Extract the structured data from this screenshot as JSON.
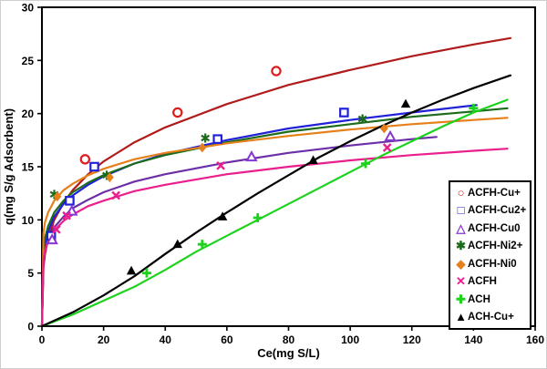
{
  "figure": {
    "background": "#ffffff",
    "border_color": "#cfcfcf"
  },
  "chart_data": {
    "type": "scatter",
    "title": "",
    "xlabel": "Ce(mg S/L)",
    "ylabel": "q(mg S/g Adsorbent)",
    "xlim": [
      0,
      160
    ],
    "ylim": [
      0,
      30
    ],
    "xticks": [
      0,
      20,
      40,
      60,
      80,
      100,
      120,
      140,
      160
    ],
    "yticks": [
      0,
      5,
      10,
      15,
      20,
      25,
      30
    ],
    "grid": false,
    "legend_position": "inside bottom-right",
    "axis_color": "#000000",
    "series": [
      {
        "name": "ACFH-Cu+",
        "marker": "open-circle",
        "marker_color": "#dd1c1c",
        "line_color": "#b01c1c",
        "points": [
          [
            14,
            15.7
          ],
          [
            44,
            20.1
          ],
          [
            76,
            24.0
          ]
        ],
        "curve": [
          [
            0,
            0
          ],
          [
            0.5,
            5.6
          ],
          [
            1,
            6.8
          ],
          [
            2,
            8.2
          ],
          [
            4,
            10.0
          ],
          [
            7,
            11.6
          ],
          [
            10,
            12.8
          ],
          [
            15,
            14.3
          ],
          [
            20,
            15.5
          ],
          [
            30,
            17.3
          ],
          [
            40,
            18.7
          ],
          [
            60,
            20.9
          ],
          [
            80,
            22.7
          ],
          [
            100,
            24.1
          ],
          [
            120,
            25.4
          ],
          [
            140,
            26.5
          ],
          [
            152,
            27.1
          ]
        ]
      },
      {
        "name": "ACFH-Cu2+",
        "marker": "open-square",
        "marker_color": "#2121d8",
        "line_color": "#2121d8",
        "points": [
          [
            3,
            8.5
          ],
          [
            9,
            11.8
          ],
          [
            17,
            15.0
          ],
          [
            57,
            17.6
          ],
          [
            98,
            20.1
          ]
        ],
        "curve": [
          [
            0,
            0
          ],
          [
            0.5,
            6.8
          ],
          [
            1,
            7.8
          ],
          [
            2,
            8.9
          ],
          [
            4,
            10.3
          ],
          [
            7,
            11.5
          ],
          [
            10,
            12.3
          ],
          [
            15,
            13.3
          ],
          [
            20,
            14.1
          ],
          [
            30,
            15.3
          ],
          [
            40,
            16.2
          ],
          [
            60,
            17.5
          ],
          [
            80,
            18.6
          ],
          [
            100,
            19.4
          ],
          [
            120,
            20.1
          ],
          [
            141,
            20.8
          ]
        ]
      },
      {
        "name": "ACFH-Cu0",
        "marker": "open-triangle",
        "marker_color": "#8636d2",
        "line_color": "#6d2fa8",
        "points": [
          [
            3.3,
            8.1
          ],
          [
            9.7,
            10.8
          ],
          [
            68,
            15.9
          ],
          [
            113,
            17.8
          ]
        ],
        "curve": [
          [
            0,
            0
          ],
          [
            0.5,
            6.3
          ],
          [
            1,
            7.2
          ],
          [
            2,
            8.2
          ],
          [
            4,
            9.3
          ],
          [
            7,
            10.3
          ],
          [
            10,
            11.1
          ],
          [
            15,
            11.9
          ],
          [
            20,
            12.6
          ],
          [
            30,
            13.6
          ],
          [
            40,
            14.3
          ],
          [
            60,
            15.4
          ],
          [
            80,
            16.3
          ],
          [
            100,
            17.0
          ],
          [
            120,
            17.6
          ],
          [
            128,
            17.8
          ]
        ]
      },
      {
        "name": "ACFH-Ni2+",
        "marker": "star",
        "marker_color": "#1c6b1c",
        "line_color": "#1c6b1c",
        "points": [
          [
            4,
            12.4
          ],
          [
            21,
            14.2
          ],
          [
            53,
            17.7
          ],
          [
            104,
            19.5
          ]
        ],
        "curve": [
          [
            0,
            0
          ],
          [
            0.5,
            7.3
          ],
          [
            1,
            8.3
          ],
          [
            2,
            9.4
          ],
          [
            4,
            10.7
          ],
          [
            7,
            11.8
          ],
          [
            10,
            12.6
          ],
          [
            15,
            13.5
          ],
          [
            20,
            14.2
          ],
          [
            30,
            15.3
          ],
          [
            40,
            16.1
          ],
          [
            60,
            17.3
          ],
          [
            80,
            18.3
          ],
          [
            100,
            19.0
          ],
          [
            120,
            19.7
          ],
          [
            140,
            20.2
          ],
          [
            151,
            20.5
          ]
        ]
      },
      {
        "name": "ACFH-Ni0",
        "marker": "diamond",
        "marker_color": "#e5801a",
        "line_color": "#e5801a",
        "points": [
          [
            5,
            12.2
          ],
          [
            22,
            14.0
          ],
          [
            52,
            16.8
          ],
          [
            111,
            18.6
          ]
        ],
        "curve": [
          [
            0,
            0
          ],
          [
            0.5,
            8.8
          ],
          [
            1,
            9.8
          ],
          [
            2,
            10.7
          ],
          [
            4,
            11.8
          ],
          [
            7,
            12.8
          ],
          [
            10,
            13.4
          ],
          [
            15,
            14.2
          ],
          [
            20,
            14.8
          ],
          [
            30,
            15.7
          ],
          [
            40,
            16.3
          ],
          [
            60,
            17.2
          ],
          [
            80,
            17.9
          ],
          [
            100,
            18.5
          ],
          [
            120,
            19.0
          ],
          [
            140,
            19.4
          ],
          [
            151,
            19.6
          ]
        ]
      },
      {
        "name": "ACFH",
        "marker": "x",
        "marker_color": "#ea1e8c",
        "line_color": "#ea1e8c",
        "points": [
          [
            4.7,
            9.1
          ],
          [
            8,
            10.4
          ],
          [
            24,
            12.3
          ],
          [
            58,
            15.1
          ],
          [
            112,
            16.8
          ]
        ],
        "curve": [
          [
            0,
            0
          ],
          [
            0.5,
            6.3
          ],
          [
            1,
            7.1
          ],
          [
            2,
            8.0
          ],
          [
            4,
            9.0
          ],
          [
            7,
            9.9
          ],
          [
            10,
            10.5
          ],
          [
            15,
            11.3
          ],
          [
            20,
            11.8
          ],
          [
            30,
            12.7
          ],
          [
            40,
            13.3
          ],
          [
            60,
            14.3
          ],
          [
            80,
            15.0
          ],
          [
            100,
            15.6
          ],
          [
            120,
            16.1
          ],
          [
            140,
            16.5
          ],
          [
            151,
            16.7
          ]
        ]
      },
      {
        "name": "ACH",
        "marker": "plus",
        "marker_color": "#1dd21d",
        "line_color": "#1dd21d",
        "points": [
          [
            34,
            5.0
          ],
          [
            52,
            7.7
          ],
          [
            70,
            10.2
          ],
          [
            105,
            15.3
          ],
          [
            140,
            20.5
          ]
        ],
        "curve": [
          [
            0,
            0
          ],
          [
            10,
            1.1
          ],
          [
            20,
            2.4
          ],
          [
            30,
            3.7
          ],
          [
            40,
            5.3
          ],
          [
            50,
            7.0
          ],
          [
            60,
            8.5
          ],
          [
            70,
            10.0
          ],
          [
            80,
            11.5
          ],
          [
            90,
            13.0
          ],
          [
            100,
            14.5
          ],
          [
            110,
            16.0
          ],
          [
            120,
            17.4
          ],
          [
            130,
            18.8
          ],
          [
            140,
            20.1
          ],
          [
            151,
            21.3
          ]
        ]
      },
      {
        "name": "ACH-Cu+",
        "marker": "filled-triangle",
        "marker_color": "#000000",
        "line_color": "#000000",
        "points": [
          [
            29,
            5.2
          ],
          [
            44,
            7.7
          ],
          [
            58.6,
            10.3
          ],
          [
            88,
            15.6
          ],
          [
            118,
            20.9
          ]
        ],
        "curve": [
          [
            0,
            0
          ],
          [
            10,
            1.3
          ],
          [
            20,
            2.9
          ],
          [
            30,
            4.7
          ],
          [
            40,
            6.8
          ],
          [
            50,
            8.8
          ],
          [
            60,
            10.7
          ],
          [
            70,
            12.5
          ],
          [
            80,
            14.2
          ],
          [
            90,
            15.9
          ],
          [
            100,
            17.4
          ],
          [
            110,
            18.8
          ],
          [
            120,
            20.1
          ],
          [
            130,
            21.3
          ],
          [
            140,
            22.4
          ],
          [
            152,
            23.6
          ]
        ]
      }
    ]
  }
}
